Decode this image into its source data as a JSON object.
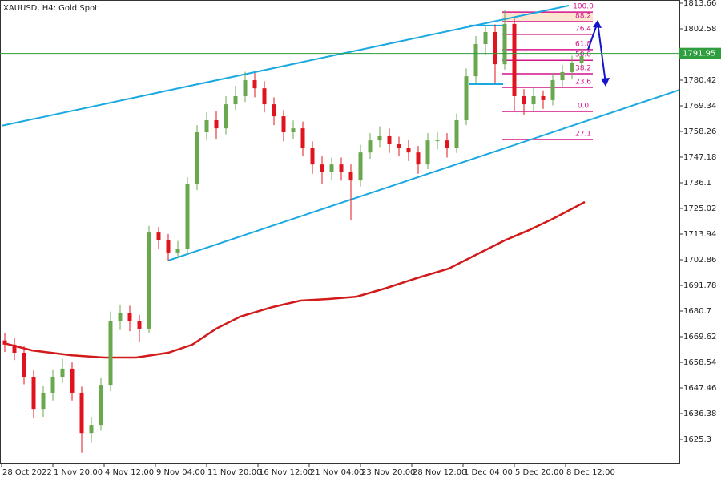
{
  "chart_data": {
    "type": "candlestick",
    "title": "XAUUSD, H4:  Gold Spot",
    "x": [
      1,
      4,
      7,
      10,
      13,
      16,
      19,
      22,
      25,
      28,
      31,
      34,
      37,
      40,
      43,
      46,
      49,
      52,
      55,
      58,
      61,
      64,
      67,
      70,
      73,
      76,
      79,
      82,
      85,
      88,
      91,
      94,
      97,
      100,
      103,
      106,
      109,
      112,
      115,
      118,
      121,
      124,
      127,
      130,
      133,
      136,
      139,
      142,
      145,
      148,
      151,
      154,
      157,
      160,
      163,
      166,
      169,
      172,
      175,
      178,
      181
    ],
    "open": [
      1668.0,
      1666.2,
      1662.7,
      1652.3,
      1638.4,
      1645.4,
      1652.3,
      1655.8,
      1645.4,
      1628.0,
      1631.5,
      1648.8,
      1676.5,
      1680.0,
      1676.5,
      1673.1,
      1714.6,
      1711.2,
      1706.0,
      1707.7,
      1735.4,
      1757.9,
      1763.1,
      1759.6,
      1770.0,
      1773.5,
      1780.4,
      1776.9,
      1770.0,
      1764.8,
      1757.9,
      1759.6,
      1751.0,
      1744.0,
      1740.6,
      1744.0,
      1740.6,
      1737.1,
      1749.2,
      1754.4,
      1756.2,
      1752.7,
      1751.0,
      1749.2,
      1744.0,
      1754.4,
      1754.4,
      1751.0,
      1763.1,
      1782.1,
      1796.0,
      1801.2,
      1787.3,
      1804.7,
      1773.5,
      1770.0,
      1773.5,
      1771.8,
      1780.4,
      1783.9,
      1788.0
    ],
    "high": [
      1671.0,
      1669.0,
      1665.5,
      1655.0,
      1648.5,
      1655.5,
      1660.0,
      1658.5,
      1648.0,
      1635.0,
      1652.0,
      1680.5,
      1683.5,
      1683.0,
      1679.0,
      1717.5,
      1717.0,
      1714.0,
      1711.0,
      1738.5,
      1761.0,
      1766.5,
      1767.0,
      1773.5,
      1778.0,
      1784.0,
      1783.5,
      1780.0,
      1773.0,
      1767.5,
      1763.0,
      1762.5,
      1754.0,
      1747.5,
      1747.0,
      1747.0,
      1744.0,
      1752.5,
      1757.5,
      1760.5,
      1759.5,
      1756.0,
      1754.5,
      1752.0,
      1757.5,
      1758.0,
      1757.5,
      1766.0,
      1785.5,
      1799.5,
      1804.0,
      1804.5,
      1810.5,
      1807.0,
      1776.5,
      1777.0,
      1776.0,
      1783.5,
      1787.0,
      1791.0,
      1794.0
    ],
    "low": [
      1663.0,
      1659.5,
      1649.0,
      1634.5,
      1635.0,
      1642.0,
      1649.5,
      1642.0,
      1619.5,
      1624.0,
      1629.0,
      1646.0,
      1672.5,
      1672.0,
      1667.5,
      1671.0,
      1707.5,
      1702.5,
      1703.5,
      1705.0,
      1733.0,
      1754.5,
      1755.0,
      1757.0,
      1767.5,
      1771.0,
      1773.0,
      1766.5,
      1761.0,
      1754.0,
      1755.0,
      1747.5,
      1740.0,
      1735.5,
      1737.5,
      1737.0,
      1719.8,
      1734.5,
      1746.5,
      1751.5,
      1749.0,
      1747.5,
      1745.5,
      1740.0,
      1742.0,
      1750.5,
      1747.0,
      1749.0,
      1761.0,
      1779.0,
      1791.5,
      1779.0,
      1785.0,
      1767.0,
      1765.5,
      1767.0,
      1768.0,
      1769.5,
      1777.5,
      1781.0,
      1785.5
    ],
    "close": [
      1666.2,
      1662.7,
      1652.3,
      1638.4,
      1645.4,
      1652.3,
      1655.8,
      1645.4,
      1628.0,
      1631.5,
      1648.8,
      1676.5,
      1680.0,
      1676.5,
      1673.1,
      1714.6,
      1711.2,
      1706.0,
      1707.7,
      1735.4,
      1757.9,
      1763.1,
      1759.6,
      1770.0,
      1773.5,
      1780.4,
      1776.9,
      1770.0,
      1764.8,
      1757.9,
      1759.6,
      1751.0,
      1744.0,
      1740.6,
      1744.0,
      1740.6,
      1737.1,
      1749.2,
      1754.4,
      1756.2,
      1752.7,
      1751.0,
      1749.2,
      1744.0,
      1754.4,
      1754.4,
      1751.0,
      1763.1,
      1782.1,
      1796.0,
      1801.2,
      1787.3,
      1804.7,
      1773.5,
      1770.0,
      1773.5,
      1771.8,
      1780.4,
      1783.9,
      1788.0,
      1790.8
    ],
    "up_color": "#6aa84f",
    "down_color": "#e0141e",
    "xlim": [
      -0.5,
      211.5
    ],
    "xticks": [
      {
        "value": 0,
        "label": "28 Oct 2022"
      },
      {
        "value": 16,
        "label": "1 Nov 20:00"
      },
      {
        "value": 32,
        "label": "4 Nov 12:00"
      },
      {
        "value": 48,
        "label": "9 Nov 04:00"
      },
      {
        "value": 64,
        "label": "11 Nov 20:00"
      },
      {
        "value": 80,
        "label": "16 Nov 12:00"
      },
      {
        "value": 96,
        "label": "21 Nov 04:00"
      },
      {
        "value": 112,
        "label": "23 Nov 20:00"
      },
      {
        "value": 128,
        "label": "28 Nov 12:00"
      },
      {
        "value": 144,
        "label": "1 Dec 04:00"
      },
      {
        "value": 160,
        "label": "5 Dec 20:00"
      },
      {
        "value": 176,
        "label": "8 Dec 12:00"
      }
    ],
    "ylim": [
      1614.91,
      1815.04
    ],
    "yticks": [
      1813.66,
      1802.58,
      1780.42,
      1769.34,
      1758.26,
      1747.18,
      1736.1,
      1725.02,
      1713.94,
      1702.86,
      1691.78,
      1680.7,
      1669.62,
      1658.54,
      1647.46,
      1636.38,
      1625.3
    ],
    "current_price": 1791.95,
    "current_price_color": "#2e9e3e",
    "moving_average": {
      "color": "#d21a1a",
      "x": [
        0.75,
        9.5,
        22,
        32,
        42,
        52,
        59.5,
        67,
        74.5,
        84.5,
        93.25,
        102,
        110.75,
        119.5,
        129.5,
        139.5,
        149.5,
        157,
        164.5,
        172,
        182
      ],
      "values": [
        1666.8,
        1663.7,
        1661.6,
        1660.6,
        1660.6,
        1662.7,
        1666.2,
        1673.1,
        1678.3,
        1682.4,
        1685.2,
        1685.9,
        1686.9,
        1690.4,
        1694.9,
        1699.0,
        1706.0,
        1711.2,
        1715.6,
        1720.5,
        1727.8
      ]
    },
    "trendlines": [
      {
        "color": "#1aa8e0",
        "x": [
          0,
          177
        ],
        "values": [
          1760.7,
          1812.6
        ]
      },
      {
        "color": "#1aa8e0",
        "x": [
          52,
          211.5
        ],
        "values": [
          1702.5,
          1776.2
        ]
      },
      {
        "color": "#1aa8e0",
        "x": [
          146,
          156.5
        ],
        "values": [
          1804.0,
          1804.0
        ]
      },
      {
        "color": "#1aa8e0",
        "x": [
          146,
          156.5
        ],
        "values": [
          1778.7,
          1778.7
        ]
      }
    ],
    "fibonacci": {
      "color": "#d4148c",
      "x": [
        156.25,
        184.5
      ],
      "levels": [
        {
          "value": 100,
          "label": "100.0"
        },
        {
          "value": 88.2,
          "label": "88.2"
        },
        {
          "value": 76.4,
          "label": "76.4"
        },
        {
          "value": 61.8,
          "label": "61.8"
        },
        {
          "value": 50,
          "label": "50.0"
        },
        {
          "value": 38.2,
          "label": "38.2"
        },
        {
          "value": 23.6,
          "label": "23.6"
        },
        {
          "value": 0,
          "label": "0.0"
        },
        {
          "value": 27.1,
          "label": "27.1"
        }
      ],
      "prices": [
        1809.8,
        1805.7,
        1800.2,
        1793.6,
        1789.0,
        1783.2,
        1777.3,
        1766.9,
        1754.8
      ]
    }
  }
}
